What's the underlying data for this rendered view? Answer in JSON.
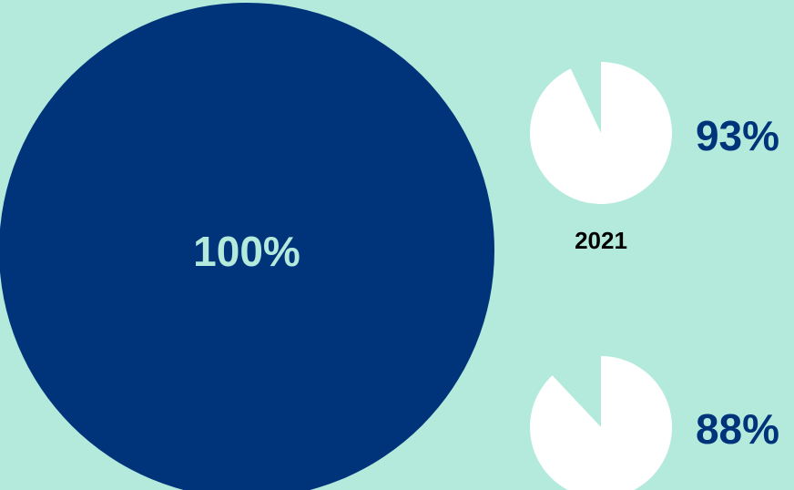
{
  "colors": {
    "background": "#b3eadb",
    "big_circle": "#00347a",
    "small_pie_fill": "#ffffff",
    "big_label": "#b3eadb",
    "small_label": "#00347a",
    "year_label": "#000000"
  },
  "chart_data": [
    {
      "type": "pie",
      "values": [
        100
      ],
      "labels": [
        "100%"
      ]
    },
    {
      "type": "pie",
      "values": [
        93
      ],
      "labels": [
        "93%"
      ]
    },
    {
      "type": "pie",
      "values": [
        88
      ],
      "labels": [
        "88%"
      ]
    }
  ],
  "year_label": "2021"
}
